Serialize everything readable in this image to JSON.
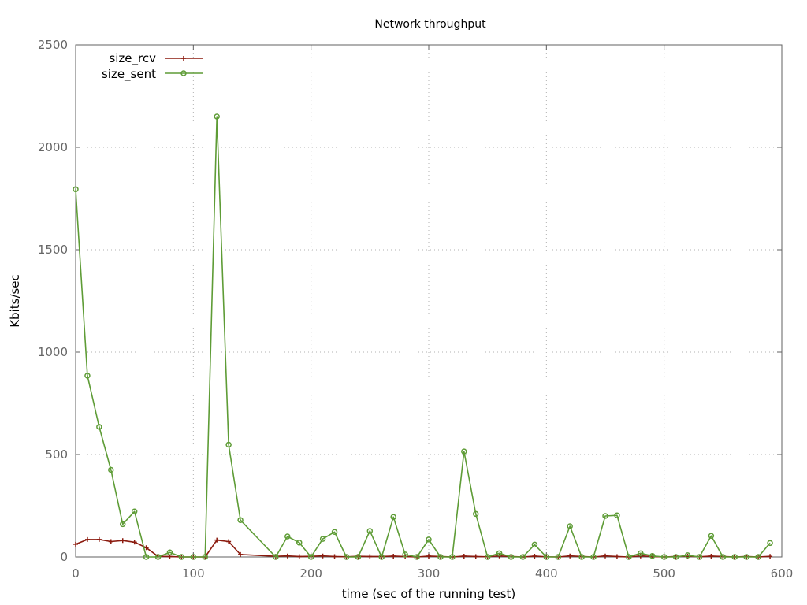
{
  "chart_data": {
    "type": "line",
    "title": "Network throughput",
    "xlabel": "time (sec of the running test)",
    "ylabel": "Kbits/sec",
    "xlim": [
      0,
      600
    ],
    "ylim": [
      0,
      2500
    ],
    "xticks": [
      0,
      100,
      200,
      300,
      400,
      500,
      600
    ],
    "yticks": [
      0,
      500,
      1000,
      1500,
      2000,
      2500
    ],
    "grid": true,
    "legend_position": "top-left",
    "series": [
      {
        "name": "size_rcv",
        "color": "#8b1a0e",
        "marker": "plus",
        "points": [
          [
            0,
            62
          ],
          [
            10,
            85
          ],
          [
            20,
            85
          ],
          [
            30,
            75
          ],
          [
            40,
            80
          ],
          [
            50,
            72
          ],
          [
            60,
            45
          ],
          [
            70,
            3
          ],
          [
            80,
            2
          ],
          [
            90,
            0
          ],
          [
            100,
            0
          ],
          [
            110,
            0
          ],
          [
            120,
            82
          ],
          [
            130,
            75
          ],
          [
            140,
            12
          ],
          [
            170,
            3
          ],
          [
            180,
            5
          ],
          [
            190,
            2
          ],
          [
            200,
            3
          ],
          [
            210,
            5
          ],
          [
            220,
            2
          ],
          [
            230,
            1
          ],
          [
            240,
            3
          ],
          [
            250,
            2
          ],
          [
            260,
            2
          ],
          [
            270,
            4
          ],
          [
            280,
            2
          ],
          [
            290,
            0
          ],
          [
            300,
            4
          ],
          [
            310,
            2
          ],
          [
            320,
            0
          ],
          [
            330,
            4
          ],
          [
            340,
            2
          ],
          [
            350,
            1
          ],
          [
            360,
            5
          ],
          [
            370,
            2
          ],
          [
            380,
            0
          ],
          [
            390,
            4
          ],
          [
            400,
            1
          ],
          [
            410,
            0
          ],
          [
            420,
            5
          ],
          [
            430,
            2
          ],
          [
            440,
            0
          ],
          [
            450,
            5
          ],
          [
            460,
            2
          ],
          [
            470,
            0
          ],
          [
            480,
            5
          ],
          [
            490,
            2
          ],
          [
            500,
            0
          ],
          [
            510,
            2
          ],
          [
            520,
            4
          ],
          [
            530,
            1
          ],
          [
            540,
            4
          ],
          [
            550,
            2
          ],
          [
            560,
            0
          ],
          [
            570,
            2
          ],
          [
            580,
            0
          ],
          [
            590,
            3
          ]
        ]
      },
      {
        "name": "size_sent",
        "color": "#5e9c36",
        "marker": "circle",
        "points": [
          [
            0,
            1795
          ],
          [
            10,
            885
          ],
          [
            20,
            635
          ],
          [
            30,
            425
          ],
          [
            40,
            160
          ],
          [
            50,
            222
          ],
          [
            60,
            0
          ],
          [
            70,
            0
          ],
          [
            80,
            22
          ],
          [
            90,
            0
          ],
          [
            100,
            0
          ],
          [
            110,
            0
          ],
          [
            120,
            2150
          ],
          [
            130,
            548
          ],
          [
            140,
            180
          ],
          [
            170,
            0
          ],
          [
            180,
            100
          ],
          [
            190,
            70
          ],
          [
            200,
            0
          ],
          [
            210,
            88
          ],
          [
            220,
            122
          ],
          [
            230,
            0
          ],
          [
            240,
            0
          ],
          [
            250,
            127
          ],
          [
            260,
            0
          ],
          [
            270,
            195
          ],
          [
            280,
            12
          ],
          [
            290,
            0
          ],
          [
            300,
            85
          ],
          [
            310,
            0
          ],
          [
            320,
            0
          ],
          [
            330,
            515
          ],
          [
            340,
            210
          ],
          [
            350,
            0
          ],
          [
            360,
            18
          ],
          [
            370,
            0
          ],
          [
            380,
            0
          ],
          [
            390,
            60
          ],
          [
            400,
            0
          ],
          [
            410,
            0
          ],
          [
            420,
            150
          ],
          [
            430,
            0
          ],
          [
            440,
            0
          ],
          [
            450,
            200
          ],
          [
            460,
            203
          ],
          [
            470,
            0
          ],
          [
            480,
            18
          ],
          [
            490,
            5
          ],
          [
            500,
            0
          ],
          [
            510,
            0
          ],
          [
            520,
            8
          ],
          [
            530,
            0
          ],
          [
            540,
            103
          ],
          [
            550,
            0
          ],
          [
            560,
            0
          ],
          [
            570,
            0
          ],
          [
            580,
            0
          ],
          [
            590,
            68
          ]
        ]
      }
    ]
  }
}
